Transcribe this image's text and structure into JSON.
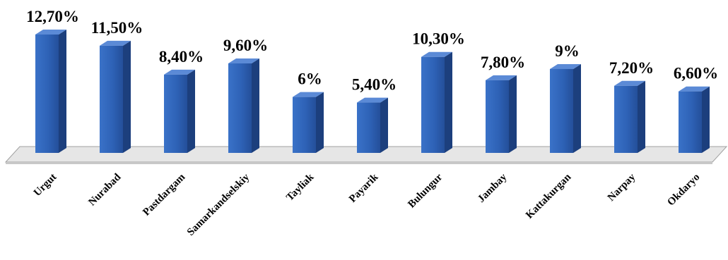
{
  "chart_data": {
    "type": "bar",
    "title": "",
    "xlabel": "",
    "ylabel": "",
    "categories": [
      "Urgut",
      "Nurabad",
      "Pastdargam",
      "Samarkandselskiy",
      "Tayliak",
      "Payarik",
      "Bulungur",
      "Jambay",
      "Kattakurgan",
      "Narpay",
      "Okdaryo"
    ],
    "values": [
      12.7,
      11.5,
      8.4,
      9.6,
      6.0,
      5.4,
      10.3,
      7.8,
      9.0,
      7.2,
      6.6
    ],
    "data_labels": [
      "12,70%",
      "11,50%",
      "8,40%",
      "9,60%",
      "6%",
      "5,40%",
      "10,30%",
      "7,80%",
      "9%",
      "7,20%",
      "6,60%"
    ],
    "ylim": [
      0,
      12.7
    ],
    "grid": false,
    "legend": "none",
    "style": "3d-column",
    "colors": {
      "bar_front": "#2e62b6",
      "bar_side": "#1c3f7d",
      "bar_top": "#5b8ad6",
      "floor": "#e6e6e6",
      "floor_edge": "#a0a0a0"
    }
  }
}
